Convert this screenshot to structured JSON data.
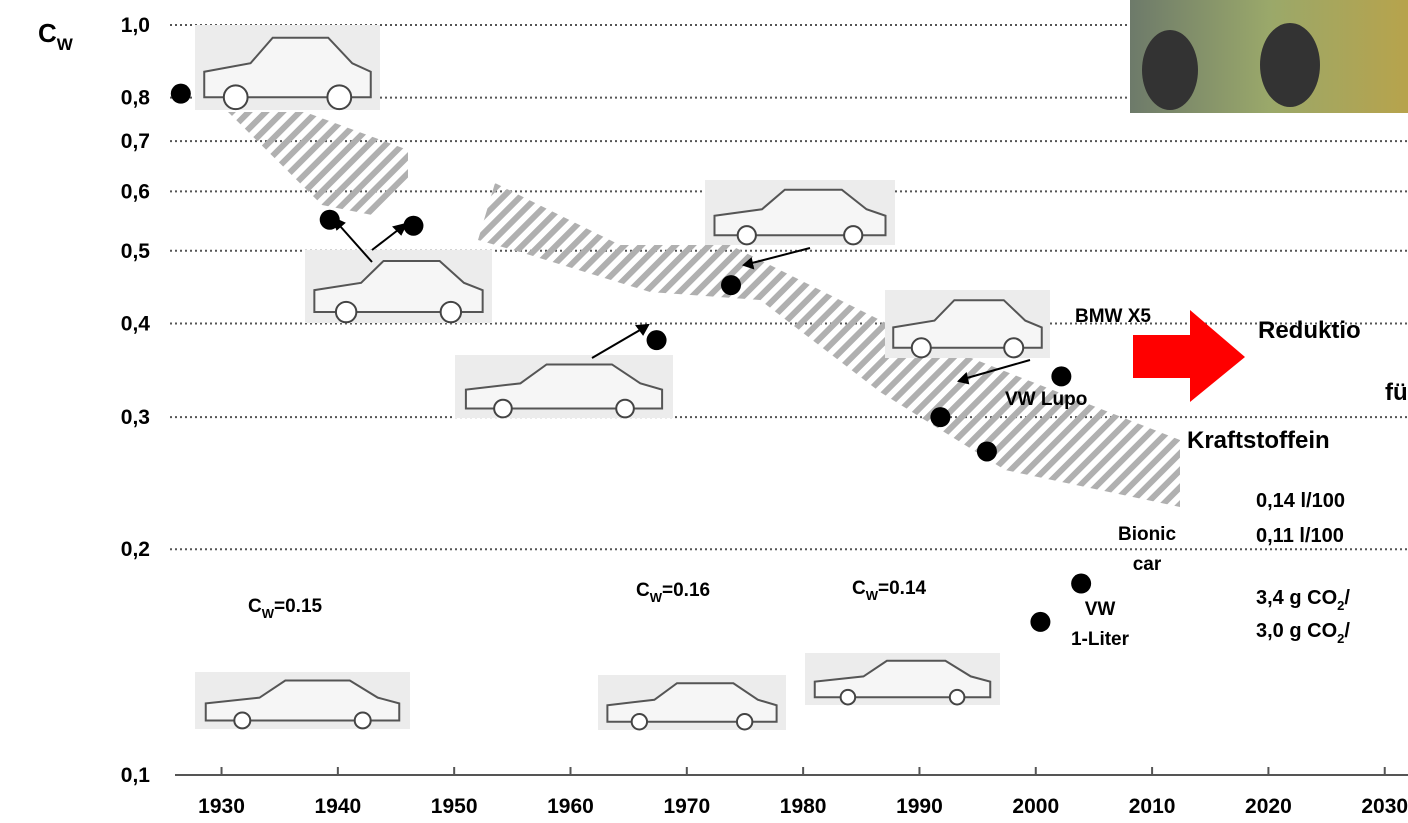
{
  "chart_data": {
    "type": "scatter",
    "y_label": {
      "main": "C",
      "sub": "W"
    },
    "x": [
      1926.5,
      1939.3,
      1946.5,
      1967.4,
      1973.8,
      1991.8,
      1995.8,
      2002.2,
      2003.9,
      2000.4
    ],
    "series": [
      {
        "color": "#000000",
        "values": [
          0.81,
          0.55,
          0.54,
          0.38,
          0.45,
          0.3,
          0.27,
          0.34,
          0.18,
          0.16
        ]
      }
    ],
    "xlim": [
      1926,
      2032
    ],
    "xticks": [
      1930,
      1940,
      1950,
      1960,
      1970,
      1980,
      1990,
      2000,
      2010,
      2020,
      2030
    ],
    "ylim": [
      0.1,
      1.0
    ],
    "yticks": [
      {
        "value": 0.1,
        "label": "0,1"
      },
      {
        "value": 0.2,
        "label": "0,2"
      },
      {
        "value": 0.3,
        "label": "0,3"
      },
      {
        "value": 0.4,
        "label": "0,4"
      },
      {
        "value": 0.5,
        "label": "0,5"
      },
      {
        "value": 0.6,
        "label": "0,6"
      },
      {
        "value": 0.7,
        "label": "0,7"
      },
      {
        "value": 0.8,
        "label": "0,8"
      },
      {
        "value": 1.0,
        "label": "1,0"
      }
    ],
    "log_y": true,
    "grid": true,
    "annotations": [
      [
        "BMW X5"
      ],
      [
        "VW Lupo"
      ],
      [
        "Bionic",
        "car"
      ],
      [
        "VW",
        "1-Liter"
      ]
    ],
    "cw_labels": [
      {
        "main": "C",
        "sub": "W",
        "text": "=0.15"
      },
      {
        "main": "C",
        "sub": "W",
        "text": "=0.16"
      },
      {
        "main": "C",
        "sub": "W",
        "text": "=0.14"
      }
    ],
    "side_text": [
      {
        "text": "Reduktio"
      },
      {
        "text": "fü"
      },
      {
        "text": "Kraftstoffein"
      },
      {
        "text": "0,14 l/100"
      },
      {
        "text": "0,11 l/100"
      },
      {
        "text": "3,4 g CO",
        "sub": "2",
        "post": "/"
      },
      {
        "text": "3,0 g CO",
        "sub": "2",
        "post": "/"
      }
    ]
  }
}
